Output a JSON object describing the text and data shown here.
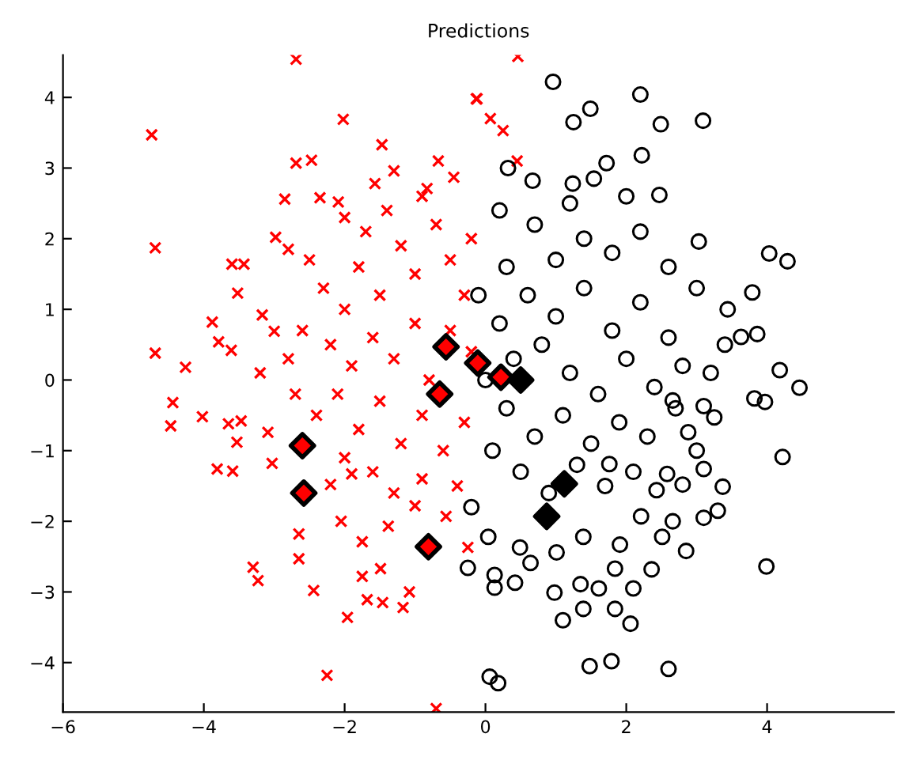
{
  "chart_data": {
    "type": "scatter",
    "title": "Predictions",
    "xlim": [
      -6,
      5.8
    ],
    "ylim": [
      -4.7,
      4.6
    ],
    "xticks": [
      -6,
      -4,
      -2,
      0,
      2,
      4
    ],
    "yticks": [
      -4,
      -3,
      -2,
      -1,
      0,
      1,
      2,
      3,
      4
    ],
    "grid": false,
    "legend": false,
    "series": [
      {
        "color": "#ff0000",
        "marker": "cross",
        "x": [
          -4.74,
          -4.69,
          -4.69,
          -4.26,
          -3.88,
          -3.79,
          -3.61,
          -3.52,
          -3.6,
          -3.43,
          -3.17,
          -3.0,
          -2.69,
          -2.02,
          -2.69,
          -2.47,
          -1.47,
          -1.3,
          -1.57,
          -0.67,
          -0.45,
          -0.12,
          -2.85,
          -2.98,
          -2.8,
          -2.35,
          -2.09,
          -0.83,
          0.46,
          -0.13,
          0.07,
          0.25,
          0.45,
          -4.44,
          -4.47,
          -4.02,
          -3.65,
          -3.47,
          -3.53,
          -3.81,
          -3.59,
          -3.3,
          -3.23,
          -2.44,
          -2.65,
          -2.65,
          -1.96,
          -2.25,
          -0.7,
          -1.68,
          -1.46,
          -1.17,
          -1.08,
          -1.75,
          -1.49,
          -2.05,
          -1.75,
          -1.38,
          -1.0,
          -0.56,
          -0.25,
          -3.03,
          -3.09,
          -2.2,
          -1.9,
          -2.5,
          -2.3,
          -2.0,
          -1.8,
          -1.5,
          -1.2,
          -1.0,
          -0.7,
          -0.5,
          -0.3,
          -2.6,
          -2.2,
          -1.9,
          -1.6,
          -1.3,
          -1.0,
          -0.8,
          -0.5,
          -0.2,
          -2.7,
          -2.4,
          -2.1,
          -1.8,
          -1.5,
          -1.2,
          -0.9,
          -0.6,
          -0.3,
          -2.0,
          -1.6,
          -1.3,
          -0.9,
          -0.4,
          -2.8,
          -3.2,
          -1.4,
          -1.7,
          -2.0,
          -0.9,
          -0.2
        ],
        "values": [
          3.47,
          1.87,
          0.38,
          0.18,
          0.82,
          0.54,
          0.42,
          1.23,
          1.64,
          1.64,
          0.92,
          0.69,
          4.54,
          3.69,
          3.07,
          3.11,
          3.33,
          2.96,
          2.78,
          3.1,
          2.87,
          3.98,
          2.56,
          2.02,
          1.85,
          2.58,
          2.52,
          2.71,
          4.58,
          3.98,
          3.7,
          3.53,
          3.1,
          -0.32,
          -0.65,
          -0.52,
          -0.62,
          -0.58,
          -0.88,
          -1.26,
          -1.29,
          -2.65,
          -2.84,
          -2.98,
          -2.18,
          -2.53,
          -3.36,
          -4.18,
          -4.65,
          -3.11,
          -3.15,
          -3.22,
          -3.0,
          -2.78,
          -2.67,
          -2.0,
          -2.29,
          -2.07,
          -1.78,
          -1.93,
          -2.37,
          -1.18,
          -0.74,
          -1.48,
          -1.33,
          1.7,
          1.3,
          1.0,
          1.6,
          1.2,
          1.9,
          1.5,
          2.2,
          1.7,
          1.2,
          0.7,
          0.5,
          0.2,
          0.6,
          0.3,
          0.8,
          0.0,
          0.7,
          0.4,
          -0.2,
          -0.5,
          -0.2,
          -0.7,
          -0.3,
          -0.9,
          -0.5,
          -1.0,
          -0.6,
          -1.1,
          -1.3,
          -1.6,
          -1.4,
          -1.5,
          0.3,
          0.1,
          2.4,
          2.1,
          2.3,
          2.6,
          2.0
        ]
      },
      {
        "color": "#000000",
        "marker": "circle",
        "x": [
          0.96,
          1.25,
          1.49,
          2.2,
          2.49,
          3.09,
          2.22,
          1.72,
          2.47,
          4.03,
          4.29,
          3.79,
          3.03,
          3.44,
          3.86,
          3.63,
          4.18,
          4.46,
          0.32,
          0.67,
          1.24,
          1.54,
          3.82,
          3.97,
          4.22,
          3.99,
          3.1,
          3.3,
          3.37,
          2.85,
          2.36,
          2.1,
          2.06,
          1.84,
          1.39,
          1.1,
          1.48,
          1.79,
          2.6,
          0.06,
          0.18,
          0.13,
          0.13,
          0.42,
          0.98,
          1.61,
          1.84,
          1.35,
          -0.25,
          0.64,
          1.01,
          0.04,
          0.49,
          1.39,
          1.91,
          2.51,
          2.66,
          2.21,
          2.58,
          2.8,
          3.1,
          2.43,
          1.76,
          3.25,
          2.88,
          3.1,
          2.66,
          0.3,
          0.7,
          1.0,
          1.4,
          1.8,
          2.2,
          2.6,
          3.0,
          0.2,
          0.6,
          1.0,
          1.4,
          1.8,
          2.2,
          2.6,
          0.4,
          0.8,
          1.2,
          1.6,
          2.0,
          2.4,
          2.8,
          3.2,
          0.3,
          0.7,
          1.1,
          1.5,
          1.9,
          2.3,
          2.7,
          0.5,
          0.9,
          1.3,
          1.7,
          2.1,
          0.1,
          0.0,
          -0.2,
          -0.1,
          0.2,
          3.4,
          3.0,
          2.0,
          1.2
        ],
        "values": [
          4.22,
          3.65,
          3.84,
          4.04,
          3.62,
          3.67,
          3.18,
          3.07,
          2.62,
          1.79,
          1.68,
          1.24,
          1.96,
          1.0,
          0.65,
          0.61,
          0.14,
          -0.11,
          3.0,
          2.82,
          2.78,
          2.85,
          -0.26,
          -0.31,
          -1.09,
          -2.64,
          -1.95,
          -1.85,
          -1.51,
          -2.42,
          -2.68,
          -2.95,
          -3.45,
          -3.24,
          -3.24,
          -3.4,
          -4.05,
          -3.98,
          -4.09,
          -4.2,
          -4.29,
          -2.76,
          -2.94,
          -2.87,
          -3.01,
          -2.95,
          -2.67,
          -2.89,
          -2.66,
          -2.59,
          -2.44,
          -2.22,
          -2.37,
          -2.22,
          -2.33,
          -2.22,
          -2.0,
          -1.93,
          -1.33,
          -1.48,
          -1.26,
          -1.56,
          -1.19,
          -0.53,
          -0.74,
          -0.37,
          -0.29,
          1.6,
          2.2,
          1.7,
          2.0,
          1.8,
          2.1,
          1.6,
          1.3,
          0.8,
          1.2,
          0.9,
          1.3,
          0.7,
          1.1,
          0.6,
          0.3,
          0.5,
          0.1,
          -0.2,
          0.3,
          -0.1,
          0.2,
          0.1,
          -0.4,
          -0.8,
          -0.5,
          -0.9,
          -0.6,
          -0.8,
          -0.4,
          -1.3,
          -1.6,
          -1.2,
          -1.5,
          -1.3,
          -1.0,
          0.0,
          -1.8,
          1.2,
          2.4,
          0.5,
          -1.0,
          2.6,
          2.5
        ]
      },
      {
        "color": "#ff0000",
        "marker": "diamond",
        "x": [
          -2.6,
          -2.58,
          -0.81,
          -0.56,
          -0.65,
          -0.11,
          0.22
        ],
        "values": [
          -0.93,
          -1.6,
          -2.36,
          0.47,
          -0.2,
          0.24,
          0.04
        ]
      },
      {
        "color": "#000000",
        "marker": "diamond",
        "x": [
          1.12,
          0.87,
          0.5
        ],
        "values": [
          -1.47,
          -1.93,
          0.0
        ]
      }
    ]
  }
}
